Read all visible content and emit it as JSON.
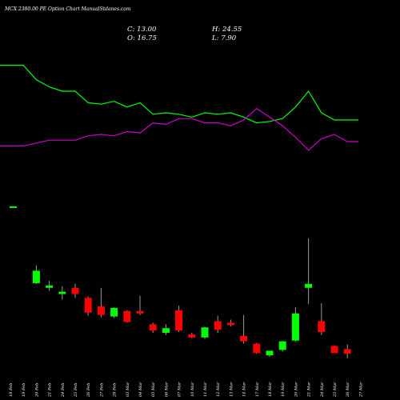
{
  "chart_data": {
    "type": "candlestick",
    "title": "MCX  2380.00  PE Option  Chart ManualStdanes.com",
    "ohlc": {
      "c": "C: 13.00",
      "h": "H: 24.55",
      "o": "O: 16.75",
      "l": "L: 7.90"
    },
    "colors": {
      "up": "#00ff00",
      "down": "#ff0000",
      "line_green": "#00ff00",
      "line_magenta": "#cc00cc",
      "background": "#000000"
    },
    "categories": [
      "18 Feb",
      "19 Feb",
      "20 Feb",
      "21 Feb",
      "24 Feb",
      "25 Feb",
      "26 Feb",
      "27 Feb",
      "28 Feb",
      "03 Mar",
      "04 Mar",
      "05 Mar",
      "06 Mar",
      "07 Mar",
      "10 Mar",
      "11 Mar",
      "12 Mar",
      "13 Mar",
      "14 Mar",
      "17 Mar",
      "18 Mar",
      "19 Mar",
      "20 Mar",
      "21 Mar",
      "24 Mar",
      "25 Mar",
      "26 Mar",
      "27 Mar"
    ],
    "candles": [
      {
        "o": 0,
        "h": 0,
        "l": 0,
        "c": 0,
        "dir": "none"
      },
      {
        "o": 0,
        "h": 0,
        "l": 0,
        "c": 0,
        "dir": "none"
      },
      {
        "o": 18.5,
        "h": 19.2,
        "l": 16.8,
        "c": 16.9,
        "dir": "up"
      },
      {
        "o": 16.6,
        "h": 17.2,
        "l": 15.9,
        "c": 16.3,
        "dir": "up"
      },
      {
        "o": 15.8,
        "h": 16.5,
        "l": 14.8,
        "c": 15.5,
        "dir": "up"
      },
      {
        "o": 16.3,
        "h": 16.8,
        "l": 15.0,
        "c": 15.5,
        "dir": "down"
      },
      {
        "o": 15.0,
        "h": 15.2,
        "l": 12.7,
        "c": 13.1,
        "dir": "down"
      },
      {
        "o": 13.9,
        "h": 16.3,
        "l": 12.5,
        "c": 12.8,
        "dir": "down"
      },
      {
        "o": 12.6,
        "h": 13.8,
        "l": 12.4,
        "c": 13.7,
        "dir": "up"
      },
      {
        "o": 13.3,
        "h": 13.4,
        "l": 11.8,
        "c": 11.9,
        "dir": "down"
      },
      {
        "o": 13.3,
        "h": 15.3,
        "l": 12.8,
        "c": 13.0,
        "dir": "down"
      },
      {
        "o": 11.6,
        "h": 11.8,
        "l": 10.5,
        "c": 10.8,
        "dir": "down"
      },
      {
        "o": 10.5,
        "h": 11.6,
        "l": 10.2,
        "c": 11.1,
        "dir": "up"
      },
      {
        "o": 13.4,
        "h": 14.0,
        "l": 10.6,
        "c": 10.8,
        "dir": "down"
      },
      {
        "o": 10.3,
        "h": 10.5,
        "l": 9.8,
        "c": 9.9,
        "dir": "down"
      },
      {
        "o": 9.9,
        "h": 11.3,
        "l": 9.7,
        "c": 11.2,
        "dir": "up"
      },
      {
        "o": 12.0,
        "h": 12.7,
        "l": 10.5,
        "c": 10.9,
        "dir": "down"
      },
      {
        "o": 11.8,
        "h": 12.2,
        "l": 11.3,
        "c": 11.5,
        "dir": "down"
      },
      {
        "o": 10.1,
        "h": 12.8,
        "l": 9.1,
        "c": 9.4,
        "dir": "down"
      },
      {
        "o": 9.1,
        "h": 9.2,
        "l": 7.8,
        "c": 7.9,
        "dir": "down"
      },
      {
        "o": 7.6,
        "h": 8.1,
        "l": 7.4,
        "c": 8.2,
        "dir": "up"
      },
      {
        "o": 8.3,
        "h": 9.5,
        "l": 8.1,
        "c": 9.4,
        "dir": "up"
      },
      {
        "o": 9.5,
        "h": 13.8,
        "l": 9.3,
        "c": 13.0,
        "dir": "up"
      },
      {
        "o": 16.8,
        "h": 22.7,
        "l": 14.2,
        "c": 16.3,
        "dir": "up"
      },
      {
        "o": 12.0,
        "h": 14.3,
        "l": 10.2,
        "c": 10.6,
        "dir": "down"
      },
      {
        "o": 8.8,
        "h": 8.9,
        "l": 7.9,
        "c": 7.9,
        "dir": "down"
      },
      {
        "o": 8.4,
        "h": 9.0,
        "l": 7.2,
        "c": 7.8,
        "dir": "down"
      },
      {
        "o": 0,
        "h": 0,
        "l": 0,
        "c": 0,
        "dir": "none"
      }
    ],
    "green_line": [
      88,
      88,
      78,
      73,
      70,
      70,
      62,
      61,
      63,
      59,
      62,
      54,
      55,
      54,
      52,
      55,
      54,
      55,
      52,
      48,
      49,
      51,
      59,
      70,
      55,
      50,
      50,
      50
    ],
    "magenta_line": [
      32,
      32,
      34,
      36,
      36,
      36,
      39,
      40,
      39,
      42,
      41,
      48,
      47,
      51,
      51,
      48,
      48,
      46,
      50,
      58,
      52,
      46,
      38,
      29,
      37,
      40,
      35,
      35
    ]
  }
}
